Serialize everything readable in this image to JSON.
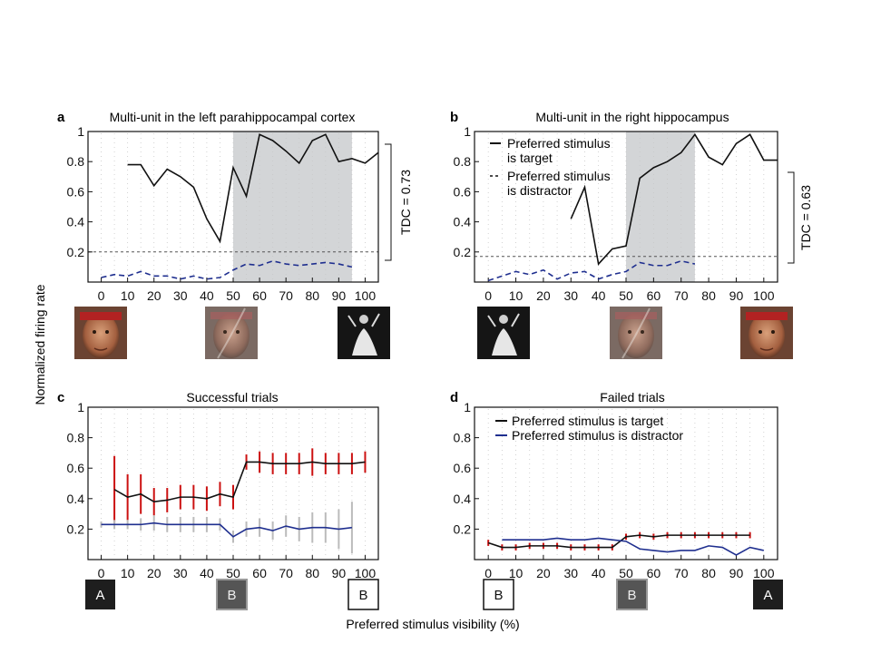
{
  "shared": {
    "ylabel": "Normalized firing rate",
    "xlabel": "Preferred stimulus visibility (%)",
    "xticks": [
      0,
      10,
      20,
      30,
      40,
      50,
      60,
      70,
      80,
      90,
      100
    ],
    "yticks": [
      "0.2",
      "0.4",
      "0.6",
      "0.8",
      "1"
    ]
  },
  "colors": {
    "target": "#111111",
    "distractor": "#1f2f8f",
    "error_target": "#cc1111",
    "error_distractor": "#bbbbbb",
    "shade": "#d3d5d7"
  },
  "panels": {
    "a": {
      "letter": "a",
      "title": "Multi-unit in the left parahippocampal cortex",
      "tdc": "TDC = 0.73"
    },
    "b": {
      "letter": "b",
      "title": "Multi-unit in the right hippocampus",
      "tdc": "TDC = 0.63",
      "legend": [
        "Preferred stimulus",
        "is target",
        "Preferred stimulus",
        "is distractor"
      ]
    },
    "c": {
      "letter": "c",
      "title": "Successful trials",
      "boxes": [
        "A",
        "B",
        "B"
      ]
    },
    "d": {
      "letter": "d",
      "title": "Failed trials",
      "boxes": [
        "B",
        "B",
        "A"
      ],
      "legend": [
        "Preferred stimulus is target",
        "Preferred stimulus is distractor"
      ]
    }
  },
  "chart_data": [
    {
      "id": "a",
      "type": "line",
      "title": "Multi-unit in the left parahippocampal cortex",
      "xlabel": "",
      "ylabel": "Normalized firing rate",
      "xlim": [
        -5,
        105
      ],
      "ylim": [
        0,
        1
      ],
      "shaded_x": [
        50,
        95
      ],
      "threshold": 0.2,
      "series": [
        {
          "style": "solid",
          "x": [
            10,
            15,
            20,
            25,
            30,
            35,
            40,
            45,
            50,
            55,
            60,
            65,
            70,
            75,
            80,
            85,
            90,
            95,
            100,
            105
          ],
          "y": [
            0.78,
            0.78,
            0.64,
            0.75,
            0.7,
            0.63,
            0.42,
            0.27,
            0.76,
            0.57,
            0.98,
            0.94,
            0.87,
            0.79,
            0.94,
            0.98,
            0.8,
            0.82,
            0.79,
            0.86
          ]
        },
        {
          "style": "dashed",
          "x": [
            0,
            5,
            10,
            15,
            20,
            25,
            30,
            35,
            40,
            45,
            50,
            55,
            60,
            65,
            70,
            75,
            80,
            85,
            90,
            95
          ],
          "y": [
            0.03,
            0.05,
            0.04,
            0.07,
            0.04,
            0.04,
            0.02,
            0.04,
            0.02,
            0.03,
            0.08,
            0.12,
            0.11,
            0.14,
            0.12,
            0.11,
            0.12,
            0.13,
            0.12,
            0.1
          ]
        }
      ]
    },
    {
      "id": "b",
      "type": "line",
      "title": "Multi-unit in the right hippocampus",
      "xlabel": "",
      "ylabel": "",
      "xlim": [
        -5,
        105
      ],
      "ylim": [
        0,
        1
      ],
      "shaded_x": [
        50,
        75
      ],
      "threshold": 0.17,
      "series": [
        {
          "name": "Preferred stimulus is target",
          "style": "solid",
          "x": [
            30,
            35,
            40,
            45,
            50,
            55,
            60,
            65,
            70,
            75,
            80,
            85,
            90,
            95,
            100,
            105
          ],
          "y": [
            0.42,
            0.63,
            0.12,
            0.22,
            0.24,
            0.69,
            0.76,
            0.8,
            0.86,
            0.98,
            0.83,
            0.78,
            0.92,
            0.98,
            0.81,
            0.81
          ]
        },
        {
          "name": "Preferred stimulus is distractor",
          "style": "dashed",
          "x": [
            0,
            5,
            10,
            15,
            20,
            25,
            30,
            35,
            40,
            45,
            50,
            55,
            60,
            65,
            70,
            75
          ],
          "y": [
            0.01,
            0.04,
            0.07,
            0.05,
            0.08,
            0.02,
            0.06,
            0.07,
            0.02,
            0.05,
            0.07,
            0.13,
            0.11,
            0.11,
            0.14,
            0.12
          ]
        }
      ]
    },
    {
      "id": "c",
      "type": "line",
      "title": "Successful trials",
      "xlabel": "Preferred stimulus visibility (%)",
      "ylabel": "Normalized firing rate",
      "xlim": [
        -5,
        105
      ],
      "ylim": [
        0,
        1
      ],
      "series": [
        {
          "style": "solid-errorbars",
          "x": [
            5,
            10,
            15,
            20,
            25,
            30,
            35,
            40,
            45,
            50,
            55,
            60,
            65,
            70,
            75,
            80,
            85,
            90,
            95,
            100
          ],
          "y": [
            0.46,
            0.41,
            0.43,
            0.38,
            0.39,
            0.41,
            0.41,
            0.4,
            0.43,
            0.41,
            0.64,
            0.64,
            0.63,
            0.63,
            0.63,
            0.64,
            0.63,
            0.63,
            0.63,
            0.64
          ],
          "err": [
            0.22,
            0.15,
            0.13,
            0.09,
            0.08,
            0.08,
            0.08,
            0.08,
            0.08,
            0.08,
            0.05,
            0.07,
            0.07,
            0.07,
            0.07,
            0.09,
            0.07,
            0.07,
            0.07,
            0.07
          ]
        },
        {
          "style": "solid-errorbars",
          "x": [
            0,
            5,
            10,
            15,
            20,
            25,
            30,
            35,
            40,
            45,
            50,
            55,
            60,
            65,
            70,
            75,
            80,
            85,
            90,
            95
          ],
          "y": [
            0.23,
            0.23,
            0.23,
            0.23,
            0.24,
            0.23,
            0.23,
            0.23,
            0.23,
            0.23,
            0.15,
            0.2,
            0.21,
            0.19,
            0.22,
            0.2,
            0.21,
            0.21,
            0.2,
            0.21
          ],
          "err": [
            0.02,
            0.03,
            0.03,
            0.04,
            0.05,
            0.05,
            0.05,
            0.05,
            0.05,
            0.04,
            0.04,
            0.05,
            0.06,
            0.06,
            0.07,
            0.08,
            0.1,
            0.1,
            0.13,
            0.17
          ]
        }
      ]
    },
    {
      "id": "d",
      "type": "line",
      "title": "Failed trials",
      "xlabel": "Preferred stimulus visibility (%)",
      "ylabel": "",
      "xlim": [
        -5,
        105
      ],
      "ylim": [
        0,
        1
      ],
      "series": [
        {
          "name": "Preferred stimulus is target",
          "style": "solid-errorbars",
          "x": [
            0,
            5,
            10,
            15,
            20,
            25,
            30,
            35,
            40,
            45,
            50,
            55,
            60,
            65,
            70,
            75,
            80,
            85,
            90,
            95
          ],
          "y": [
            0.11,
            0.08,
            0.08,
            0.09,
            0.09,
            0.09,
            0.08,
            0.08,
            0.08,
            0.08,
            0.15,
            0.16,
            0.15,
            0.16,
            0.16,
            0.16,
            0.16,
            0.16,
            0.16,
            0.16
          ],
          "err": [
            0.02,
            0.02,
            0.02,
            0.02,
            0.02,
            0.02,
            0.02,
            0.02,
            0.02,
            0.02,
            0.02,
            0.02,
            0.02,
            0.02,
            0.02,
            0.02,
            0.02,
            0.02,
            0.02,
            0.02
          ]
        },
        {
          "name": "Preferred stimulus is distractor",
          "style": "solid",
          "x": [
            5,
            10,
            15,
            20,
            25,
            30,
            35,
            40,
            45,
            50,
            55,
            60,
            65,
            70,
            75,
            80,
            85,
            90,
            95,
            100
          ],
          "y": [
            0.13,
            0.13,
            0.13,
            0.13,
            0.14,
            0.13,
            0.13,
            0.14,
            0.13,
            0.12,
            0.07,
            0.06,
            0.05,
            0.06,
            0.06,
            0.09,
            0.08,
            0.03,
            0.08,
            0.06
          ]
        }
      ]
    }
  ]
}
